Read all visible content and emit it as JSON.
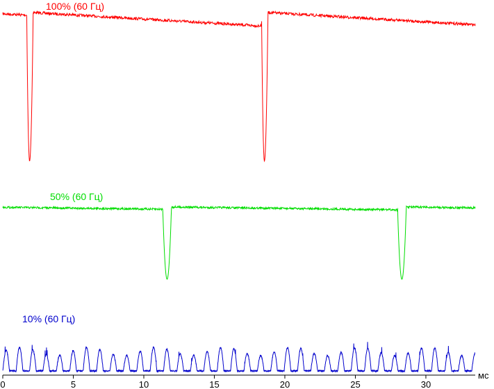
{
  "chart_data": {
    "type": "line",
    "xlabel": "мс",
    "xlim": [
      0,
      33.5
    ],
    "x_ticks": [
      0,
      5,
      10,
      15,
      20,
      25,
      30
    ],
    "x_tick_labels": [
      "0",
      "5",
      "10",
      "15",
      "20",
      "25",
      "30"
    ],
    "grid": false,
    "legend": "none",
    "series": [
      {
        "name": "100% (60 Гц)",
        "color": "#ff0000",
        "level": 1.0,
        "dips": [
          {
            "start": 1.7,
            "min": 1.9,
            "end": 2.15
          },
          {
            "start": 18.35,
            "min": 18.55,
            "end": 18.8
          }
        ]
      },
      {
        "name": "50% (60 Гц)",
        "color": "#00dd00",
        "level": 0.5,
        "dips": [
          {
            "start": 11.35,
            "min": 11.65,
            "end": 11.95
          },
          {
            "start": 28.0,
            "min": 28.3,
            "end": 28.6
          }
        ]
      },
      {
        "name": "10% (60 Гц)",
        "color": "#0000cc",
        "level": 0.1,
        "pulse_period_ms": 0.95,
        "pulse_count": 35
      }
    ]
  }
}
